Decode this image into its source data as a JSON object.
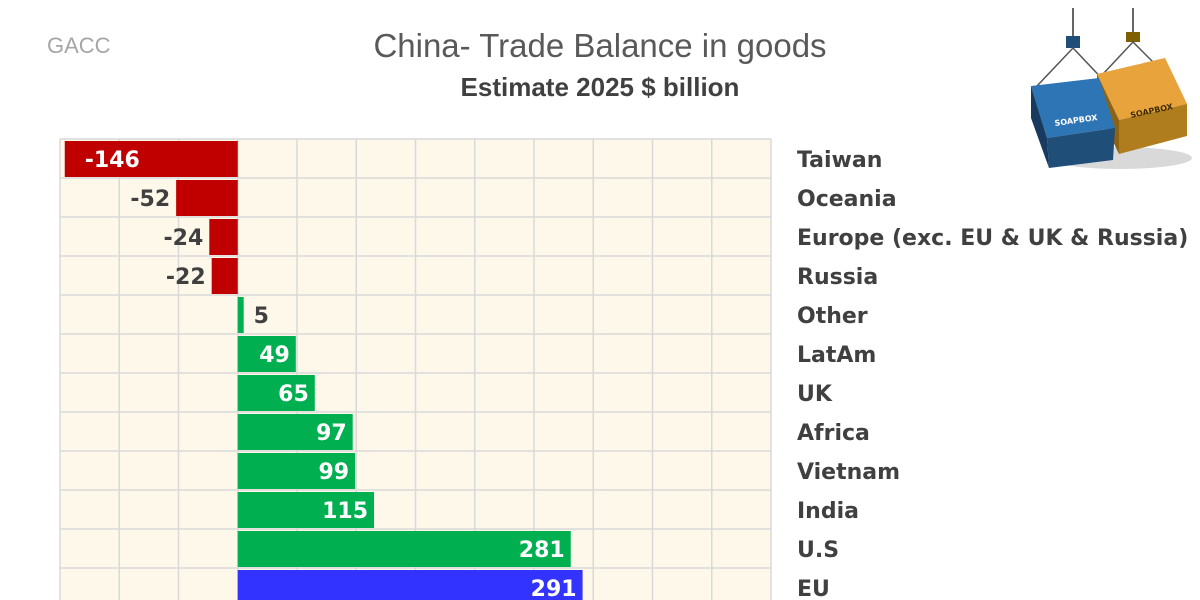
{
  "source": "GACC",
  "title": "China- Trade Balance in goods",
  "subtitle": "Estimate 2025 $ billion",
  "logo": {
    "icon": "shipping-containers-icon",
    "text": "SOAPBOX"
  },
  "colors": {
    "negative": "#c00000",
    "positive": "#00b050",
    "highlight": "#3333ff",
    "plot_bg": "#fdf8ea",
    "grid": "#d9d9d9"
  },
  "chart_data": {
    "type": "bar",
    "orientation": "horizontal",
    "categories": [
      "Taiwan",
      "Oceania",
      "Europe (exc. EU & UK & Russia)",
      "Russia",
      "Other",
      "LatAm",
      "UK",
      "Africa",
      "Vietnam",
      "India",
      "U.S",
      "EU"
    ],
    "values": [
      -146,
      -52,
      -24,
      -22,
      5,
      49,
      65,
      97,
      99,
      115,
      281,
      291
    ],
    "xlim": [
      -150,
      450
    ],
    "grid": true,
    "highlight_category": "EU"
  }
}
